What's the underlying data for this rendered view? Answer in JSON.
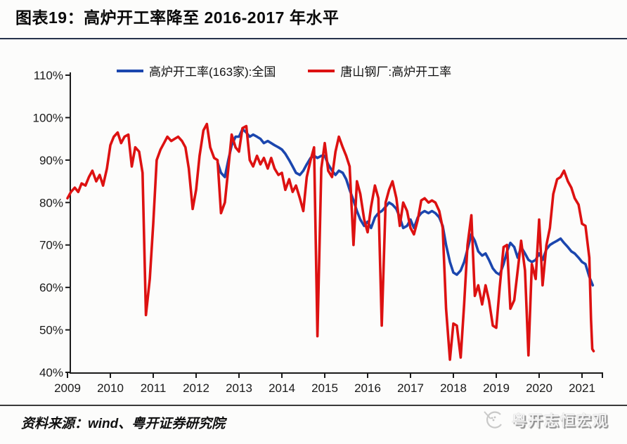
{
  "header": {
    "title": "图表19：高炉开工率降至 2016-2017 年水平"
  },
  "footer": {
    "source": "资料来源：wind、粤开证券研究院",
    "watermark": "粤开志恒宏观"
  },
  "colors": {
    "national_line": "#1B46AE",
    "tangshan_line": "#DD1111",
    "title_rule": "#26324B",
    "axis": "#1A1A1A"
  },
  "chart_data": {
    "type": "line",
    "title": "高炉开工率降至 2016-2017 年水平",
    "xlabel": "",
    "ylabel": "",
    "grid": false,
    "legend_position": "top-center",
    "y_axis": {
      "min": 40,
      "max": 110,
      "unit": "%",
      "tick_values": [
        110,
        100,
        90,
        80,
        70,
        60,
        50,
        40
      ],
      "tick_labels": [
        "110%",
        "100%",
        "90%",
        "80%",
        "70%",
        "60%",
        "50%",
        "40%"
      ]
    },
    "x_axis": {
      "min": 2009,
      "max": 2021.5,
      "tick_values": [
        2009,
        2010,
        2011,
        2012,
        2013,
        2014,
        2015,
        2016,
        2017,
        2018,
        2019,
        2020,
        2021
      ],
      "tick_labels": [
        "2009",
        "2010",
        "2011",
        "2012",
        "2013",
        "2014",
        "2015",
        "2016",
        "2017",
        "2018",
        "2019",
        "2020",
        "2021"
      ]
    },
    "series": [
      {
        "name": "高炉开工率(163家):全国",
        "color": "#1B46AE",
        "points": [
          [
            2012.5,
            89.5
          ],
          [
            2012.58,
            87
          ],
          [
            2012.67,
            86
          ],
          [
            2012.75,
            90
          ],
          [
            2012.83,
            93.5
          ],
          [
            2012.92,
            95.5
          ],
          [
            2013.0,
            95.5
          ],
          [
            2013.08,
            97.3
          ],
          [
            2013.17,
            96.5
          ],
          [
            2013.25,
            95.5
          ],
          [
            2013.33,
            96
          ],
          [
            2013.42,
            95.5
          ],
          [
            2013.5,
            95
          ],
          [
            2013.58,
            94
          ],
          [
            2013.67,
            94.5
          ],
          [
            2013.75,
            94
          ],
          [
            2013.83,
            93.5
          ],
          [
            2013.92,
            93
          ],
          [
            2014.0,
            92.5
          ],
          [
            2014.08,
            91.5
          ],
          [
            2014.17,
            90
          ],
          [
            2014.25,
            88.5
          ],
          [
            2014.33,
            87
          ],
          [
            2014.42,
            86.5
          ],
          [
            2014.5,
            87.5
          ],
          [
            2014.58,
            89
          ],
          [
            2014.67,
            90.5
          ],
          [
            2014.75,
            91
          ],
          [
            2014.83,
            90.5
          ],
          [
            2014.92,
            91
          ],
          [
            2015.0,
            91
          ],
          [
            2015.08,
            89
          ],
          [
            2015.17,
            87.5
          ],
          [
            2015.25,
            86.5
          ],
          [
            2015.33,
            87.5
          ],
          [
            2015.42,
            87
          ],
          [
            2015.5,
            85.5
          ],
          [
            2015.58,
            83
          ],
          [
            2015.67,
            80.5
          ],
          [
            2015.75,
            78
          ],
          [
            2015.83,
            76
          ],
          [
            2015.92,
            74.5
          ],
          [
            2016.0,
            75.5
          ],
          [
            2016.08,
            74
          ],
          [
            2016.17,
            76.5
          ],
          [
            2016.25,
            77.5
          ],
          [
            2016.33,
            78
          ],
          [
            2016.42,
            79
          ],
          [
            2016.5,
            80
          ],
          [
            2016.58,
            79.5
          ],
          [
            2016.67,
            78.5
          ],
          [
            2016.75,
            76.5
          ],
          [
            2016.83,
            74
          ],
          [
            2016.92,
            74.5
          ],
          [
            2017.0,
            76
          ],
          [
            2017.08,
            74
          ],
          [
            2017.17,
            76.5
          ],
          [
            2017.25,
            77.5
          ],
          [
            2017.33,
            78
          ],
          [
            2017.42,
            77.5
          ],
          [
            2017.5,
            78
          ],
          [
            2017.58,
            77.5
          ],
          [
            2017.67,
            76.5
          ],
          [
            2017.75,
            74.5
          ],
          [
            2017.83,
            70
          ],
          [
            2017.92,
            66
          ],
          [
            2018.0,
            63.5
          ],
          [
            2018.08,
            63
          ],
          [
            2018.17,
            64
          ],
          [
            2018.25,
            66
          ],
          [
            2018.33,
            69
          ],
          [
            2018.42,
            72.5
          ],
          [
            2018.5,
            71
          ],
          [
            2018.58,
            68.5
          ],
          [
            2018.67,
            67.5
          ],
          [
            2018.75,
            68
          ],
          [
            2018.83,
            66.5
          ],
          [
            2018.92,
            64.5
          ],
          [
            2019.0,
            63.5
          ],
          [
            2019.08,
            63
          ],
          [
            2019.17,
            65.5
          ],
          [
            2019.25,
            68.5
          ],
          [
            2019.33,
            70.5
          ],
          [
            2019.42,
            69.5
          ],
          [
            2019.5,
            67
          ],
          [
            2019.58,
            69.5
          ],
          [
            2019.67,
            68
          ],
          [
            2019.75,
            66.5
          ],
          [
            2019.83,
            66
          ],
          [
            2019.92,
            66.5
          ],
          [
            2020.0,
            68
          ],
          [
            2020.08,
            66.5
          ],
          [
            2020.17,
            69
          ],
          [
            2020.25,
            70
          ],
          [
            2020.33,
            70.5
          ],
          [
            2020.42,
            71
          ],
          [
            2020.5,
            71.5
          ],
          [
            2020.58,
            70.5
          ],
          [
            2020.67,
            69.5
          ],
          [
            2020.75,
            68.5
          ],
          [
            2020.83,
            68
          ],
          [
            2020.92,
            67
          ],
          [
            2021.0,
            66
          ],
          [
            2021.08,
            65.5
          ],
          [
            2021.17,
            62.5
          ],
          [
            2021.25,
            60.5
          ]
        ]
      },
      {
        "name": "唐山钢厂:高炉开工率",
        "color": "#DD1111",
        "points": [
          [
            2009.0,
            81
          ],
          [
            2009.08,
            82.5
          ],
          [
            2009.17,
            83.5
          ],
          [
            2009.25,
            82.5
          ],
          [
            2009.33,
            84.5
          ],
          [
            2009.42,
            84
          ],
          [
            2009.5,
            86
          ],
          [
            2009.58,
            87.5
          ],
          [
            2009.67,
            85
          ],
          [
            2009.75,
            86.5
          ],
          [
            2009.83,
            84
          ],
          [
            2009.92,
            88
          ],
          [
            2010.0,
            93.5
          ],
          [
            2010.08,
            95.5
          ],
          [
            2010.17,
            96.5
          ],
          [
            2010.25,
            94
          ],
          [
            2010.33,
            95.5
          ],
          [
            2010.42,
            96
          ],
          [
            2010.5,
            88.5
          ],
          [
            2010.58,
            93
          ],
          [
            2010.67,
            92
          ],
          [
            2010.75,
            87
          ],
          [
            2010.83,
            53.5
          ],
          [
            2010.92,
            62
          ],
          [
            2011.0,
            75
          ],
          [
            2011.08,
            90
          ],
          [
            2011.17,
            92.5
          ],
          [
            2011.25,
            94
          ],
          [
            2011.33,
            95.5
          ],
          [
            2011.42,
            94.5
          ],
          [
            2011.5,
            95
          ],
          [
            2011.58,
            95.5
          ],
          [
            2011.67,
            94.5
          ],
          [
            2011.75,
            93
          ],
          [
            2011.83,
            88
          ],
          [
            2011.92,
            78.5
          ],
          [
            2012.0,
            83
          ],
          [
            2012.08,
            91
          ],
          [
            2012.17,
            97
          ],
          [
            2012.25,
            98.5
          ],
          [
            2012.33,
            93
          ],
          [
            2012.42,
            90.5
          ],
          [
            2012.5,
            90
          ],
          [
            2012.58,
            77.5
          ],
          [
            2012.67,
            80
          ],
          [
            2012.75,
            88
          ],
          [
            2012.83,
            96
          ],
          [
            2012.92,
            93
          ],
          [
            2013.0,
            92
          ],
          [
            2013.08,
            97.5
          ],
          [
            2013.17,
            98
          ],
          [
            2013.25,
            90
          ],
          [
            2013.33,
            88.5
          ],
          [
            2013.42,
            91
          ],
          [
            2013.5,
            89
          ],
          [
            2013.58,
            90.5
          ],
          [
            2013.67,
            88
          ],
          [
            2013.75,
            90.5
          ],
          [
            2013.83,
            88
          ],
          [
            2013.92,
            86.5
          ],
          [
            2014.0,
            87
          ],
          [
            2014.08,
            83
          ],
          [
            2014.17,
            85.5
          ],
          [
            2014.25,
            82.5
          ],
          [
            2014.33,
            84
          ],
          [
            2014.42,
            81
          ],
          [
            2014.5,
            78
          ],
          [
            2014.58,
            86
          ],
          [
            2014.67,
            90
          ],
          [
            2014.75,
            93
          ],
          [
            2014.83,
            48.5
          ],
          [
            2014.92,
            88
          ],
          [
            2015.0,
            94
          ],
          [
            2015.08,
            87.5
          ],
          [
            2015.17,
            86
          ],
          [
            2015.25,
            92
          ],
          [
            2015.33,
            95.5
          ],
          [
            2015.42,
            93
          ],
          [
            2015.5,
            91
          ],
          [
            2015.58,
            88.5
          ],
          [
            2015.67,
            70
          ],
          [
            2015.75,
            85
          ],
          [
            2015.83,
            82
          ],
          [
            2015.92,
            76
          ],
          [
            2016.0,
            73
          ],
          [
            2016.08,
            79
          ],
          [
            2016.17,
            84
          ],
          [
            2016.25,
            81
          ],
          [
            2016.33,
            51
          ],
          [
            2016.42,
            80
          ],
          [
            2016.5,
            83
          ],
          [
            2016.58,
            85
          ],
          [
            2016.67,
            81
          ],
          [
            2016.75,
            74.5
          ],
          [
            2016.83,
            80
          ],
          [
            2016.92,
            78
          ],
          [
            2017.0,
            74
          ],
          [
            2017.08,
            72.5
          ],
          [
            2017.17,
            76
          ],
          [
            2017.25,
            80.5
          ],
          [
            2017.33,
            81
          ],
          [
            2017.42,
            80
          ],
          [
            2017.5,
            80.5
          ],
          [
            2017.58,
            80
          ],
          [
            2017.67,
            78
          ],
          [
            2017.75,
            74
          ],
          [
            2017.83,
            55
          ],
          [
            2017.92,
            43
          ],
          [
            2018.0,
            51.5
          ],
          [
            2018.08,
            51
          ],
          [
            2018.17,
            43.5
          ],
          [
            2018.25,
            56
          ],
          [
            2018.33,
            70
          ],
          [
            2018.42,
            77
          ],
          [
            2018.5,
            58
          ],
          [
            2018.58,
            60.5
          ],
          [
            2018.67,
            56
          ],
          [
            2018.75,
            60.5
          ],
          [
            2018.83,
            57
          ],
          [
            2018.92,
            51
          ],
          [
            2019.0,
            50.5
          ],
          [
            2019.08,
            60
          ],
          [
            2019.17,
            69.5
          ],
          [
            2019.25,
            70
          ],
          [
            2019.33,
            55
          ],
          [
            2019.42,
            57
          ],
          [
            2019.5,
            64
          ],
          [
            2019.58,
            71
          ],
          [
            2019.67,
            64
          ],
          [
            2019.75,
            44
          ],
          [
            2019.83,
            65.5
          ],
          [
            2019.92,
            62
          ],
          [
            2020.0,
            76
          ],
          [
            2020.08,
            60.5
          ],
          [
            2020.17,
            70
          ],
          [
            2020.25,
            74
          ],
          [
            2020.33,
            82
          ],
          [
            2020.42,
            85.5
          ],
          [
            2020.5,
            86
          ],
          [
            2020.58,
            87.5
          ],
          [
            2020.67,
            85
          ],
          [
            2020.75,
            83.5
          ],
          [
            2020.83,
            81
          ],
          [
            2020.92,
            79.5
          ],
          [
            2021.0,
            75
          ],
          [
            2021.08,
            74.5
          ],
          [
            2021.17,
            67
          ],
          [
            2021.21,
            52.5
          ],
          [
            2021.24,
            45.5
          ],
          [
            2021.27,
            45
          ]
        ]
      }
    ]
  }
}
